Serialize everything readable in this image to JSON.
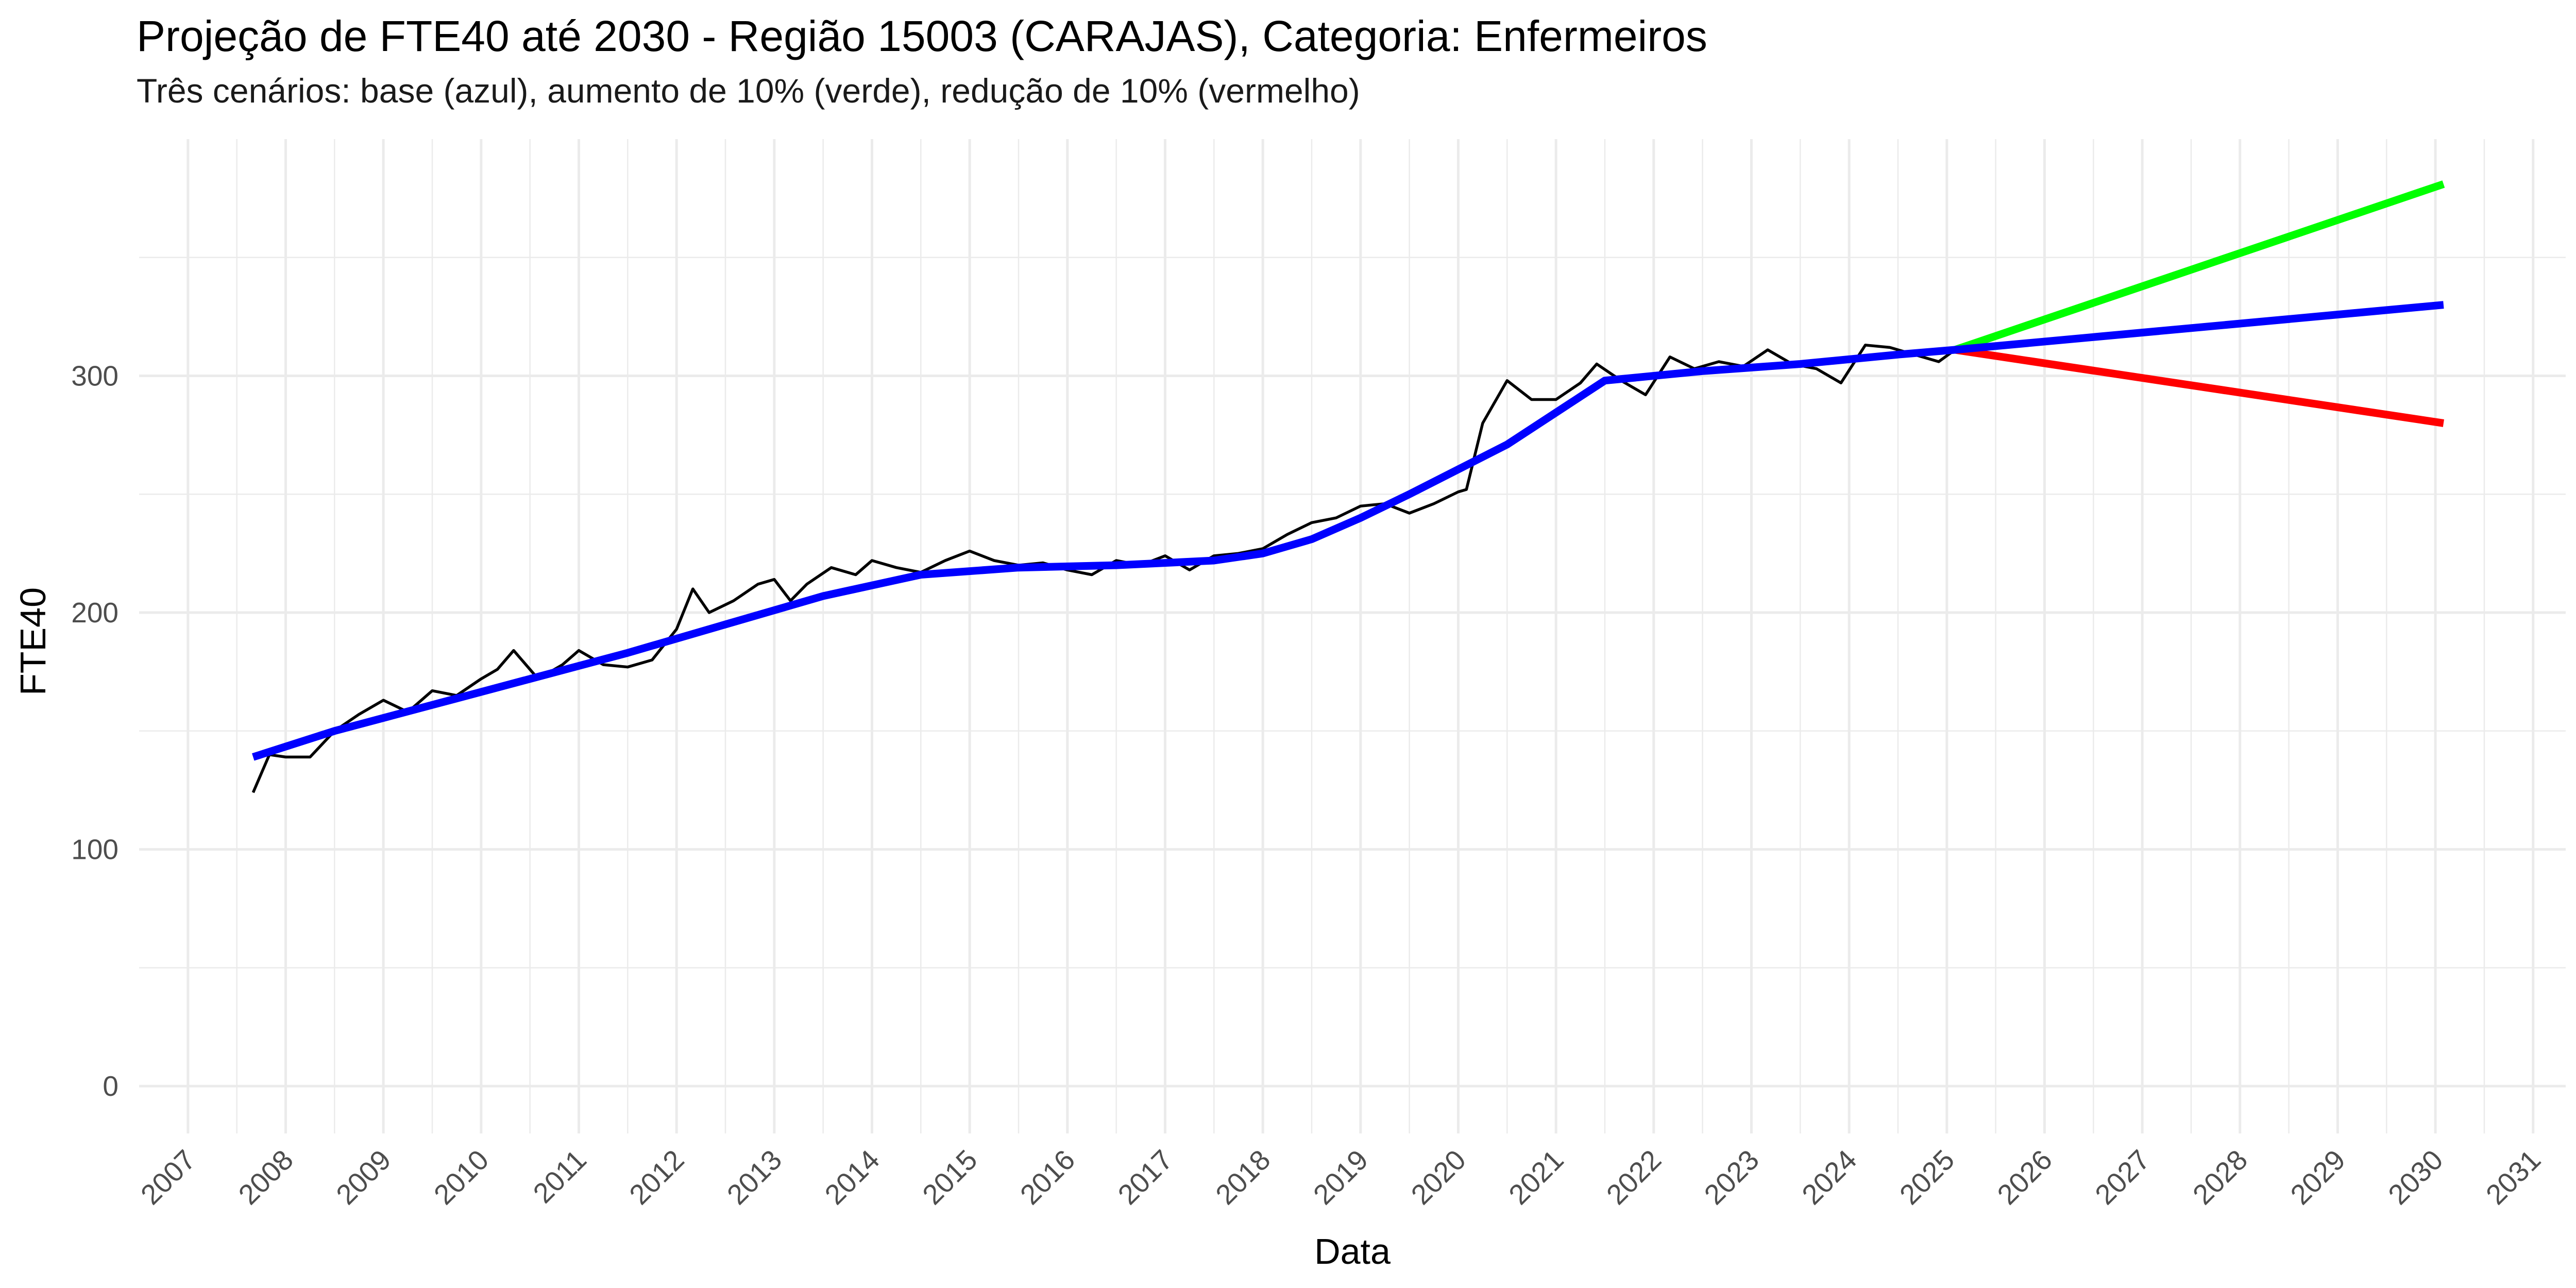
{
  "header": {
    "title": "Projeção de FTE40 até 2030 - Região 15003 (CARAJAS), Categoria: Enfermeiros",
    "subtitle": "Três cenários: base (azul), aumento de 10% (verde), redução de 10% (vermelho)"
  },
  "chart_data": {
    "type": "line",
    "title": "Projeção de FTE40 até 2030 - Região 15003 (CARAJAS), Categoria: Enfermeiros",
    "subtitle": "Três cenários: base (azul), aumento de 10% (verde), redução de 10% (vermelho)",
    "xlabel": "Data",
    "ylabel": "FTE40",
    "x_ticks": [
      "2007",
      "2008",
      "2009",
      "2010",
      "2011",
      "2012",
      "2013",
      "2014",
      "2015",
      "2016",
      "2017",
      "2018",
      "2019",
      "2020",
      "2021",
      "2022",
      "2023",
      "2024",
      "2025",
      "2026",
      "2027",
      "2028",
      "2029",
      "2030",
      "2031"
    ],
    "y_ticks": [
      "0",
      "100",
      "200",
      "300"
    ],
    "xlim": [
      "2006-07-01",
      "2031-05-01"
    ],
    "ylim": [
      -20,
      400
    ],
    "grid": true,
    "legend": "none",
    "colors": {
      "observed": "#000000",
      "base": "#0000ff",
      "increase": "#00ff00",
      "decrease": "#ff0000",
      "grid": "#ebebeb"
    },
    "series": [
      {
        "key": "observed",
        "x": [
          "2007-09",
          "2007-11",
          "2008-01",
          "2008-04",
          "2008-07",
          "2008-10",
          "2009-01",
          "2009-04",
          "2009-07",
          "2009-10",
          "2010-01",
          "2010-03",
          "2010-05",
          "2010-08",
          "2010-11",
          "2011-01",
          "2011-04",
          "2011-07",
          "2011-10",
          "2012-01",
          "2012-03",
          "2012-05",
          "2012-08",
          "2012-11",
          "2013-01",
          "2013-03",
          "2013-05",
          "2013-08",
          "2013-11",
          "2014-01",
          "2014-04",
          "2014-07",
          "2014-10",
          "2015-01",
          "2015-04",
          "2015-07",
          "2015-10",
          "2016-01",
          "2016-04",
          "2016-07",
          "2016-10",
          "2017-01",
          "2017-04",
          "2017-07",
          "2017-10",
          "2018-01",
          "2018-04",
          "2018-07",
          "2018-10",
          "2019-01",
          "2019-04",
          "2019-07",
          "2019-10",
          "2020-01",
          "2020-02",
          "2020-04",
          "2020-07",
          "2020-10",
          "2021-01",
          "2021-04",
          "2021-06",
          "2021-09",
          "2021-12",
          "2022-03",
          "2022-06",
          "2022-09",
          "2022-12",
          "2023-03",
          "2023-06",
          "2023-09",
          "2023-12",
          "2024-03",
          "2024-06",
          "2024-09",
          "2024-12",
          "2025-02"
        ],
        "y": [
          124,
          140,
          139,
          139,
          150,
          157,
          163,
          158,
          167,
          165,
          172,
          176,
          184,
          172,
          178,
          184,
          178,
          177,
          180,
          193,
          210,
          200,
          205,
          212,
          214,
          205,
          212,
          219,
          216,
          222,
          219,
          217,
          222,
          226,
          222,
          220,
          221,
          218,
          216,
          222,
          220,
          224,
          218,
          224,
          225,
          227,
          233,
          238,
          240,
          245,
          246,
          242,
          246,
          251,
          252,
          280,
          298,
          290,
          290,
          297,
          305,
          298,
          292,
          308,
          303,
          306,
          304,
          311,
          305,
          303,
          297,
          313,
          312,
          309,
          306,
          311
        ]
      },
      {
        "key": "base",
        "x": [
          "2007-09",
          "2008-07",
          "2009-07",
          "2010-07",
          "2011-07",
          "2012-07",
          "2013-07",
          "2014-07",
          "2015-07",
          "2016-07",
          "2017-07",
          "2018-01",
          "2018-07",
          "2019-01",
          "2019-07",
          "2020-07",
          "2021-07",
          "2022-07",
          "2023-07",
          "2024-07",
          "2025-02",
          "2030-02"
        ],
        "y": [
          139,
          150,
          161,
          172,
          183,
          195,
          207,
          216,
          219,
          220,
          222,
          225,
          231,
          240,
          250,
          271,
          298,
          302,
          305,
          309,
          311,
          330
        ]
      },
      {
        "key": "increase",
        "x": [
          "2025-02",
          "2030-02"
        ],
        "y": [
          311,
          381
        ]
      },
      {
        "key": "decrease",
        "x": [
          "2025-02",
          "2030-02"
        ],
        "y": [
          311,
          280
        ]
      }
    ]
  }
}
